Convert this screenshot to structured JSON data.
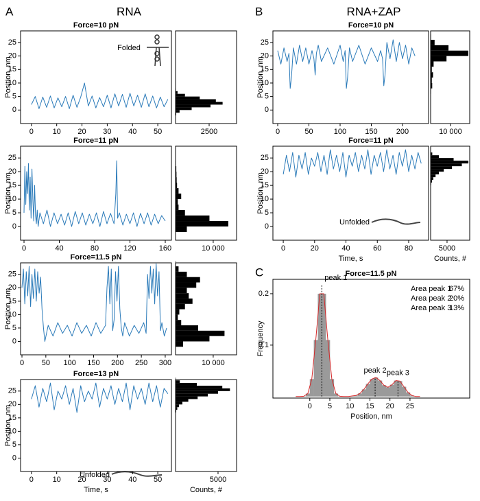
{
  "panels": [
    {
      "letter": "A",
      "title": "RNA"
    },
    {
      "letter": "B",
      "title": "RNA+ZAP"
    },
    {
      "letter": "C"
    }
  ],
  "chart_data": [
    {
      "type": "line",
      "title": "Force=10 pN",
      "ylabel": "Position, nm",
      "color": "#2a7ab9",
      "annotation": "Folded",
      "xlim": [
        -4.3,
        55.4
      ],
      "xticks": [
        0,
        10,
        20,
        30,
        40,
        50
      ],
      "ylim": [
        -5,
        29.3
      ],
      "yticks": [
        0,
        5,
        10,
        15,
        20,
        25
      ],
      "x": [
        0,
        1.5,
        3,
        4.5,
        6,
        7.5,
        9,
        10.5,
        12,
        13.5,
        15,
        16.5,
        18,
        19.5,
        21,
        22.5,
        24,
        25.5,
        27,
        28.5,
        30,
        31.5,
        33,
        34.5,
        36,
        37.5,
        39,
        40.5,
        42,
        43.5,
        45,
        46.5,
        48,
        49.5,
        51,
        52.5,
        54
      ],
      "values": [
        2,
        5,
        0.5,
        4.8,
        1,
        5.2,
        0.8,
        4.5,
        1.2,
        5,
        0.5,
        5.5,
        1,
        4.8,
        10,
        1.5,
        5.2,
        0.8,
        4.6,
        1.2,
        5.5,
        0.8,
        6,
        1.5,
        5.8,
        1,
        6.2,
        1.5,
        5.5,
        1,
        6,
        1.2,
        5.2,
        0.8,
        4.8,
        1.2,
        4
      ],
      "histogram": {
        "type": "histogram",
        "color": "#000000",
        "xlim": [
          0,
          4540
        ],
        "xticks": [
          2500
        ],
        "bins": [
          -2,
          -1,
          0,
          1,
          2,
          3,
          4,
          5,
          6,
          7,
          8
        ],
        "counts": [
          50,
          300,
          1200,
          2600,
          3500,
          3000,
          1800,
          700,
          150,
          30
        ]
      }
    },
    {
      "type": "line",
      "title": "Force=11 pN",
      "ylabel": "Position, nm",
      "color": "#2a7ab9",
      "xlim": [
        -3.9,
        167
      ],
      "xticks": [
        0,
        40,
        80,
        120,
        160
      ],
      "ylim": [
        -5,
        29.3
      ],
      "yticks": [
        0,
        5,
        10,
        15,
        20,
        25
      ],
      "x": [
        0,
        1,
        2,
        3,
        4,
        5,
        6,
        7,
        8,
        9,
        10,
        11,
        12,
        13,
        14,
        15,
        16,
        18,
        22,
        26,
        30,
        34,
        38,
        42,
        46,
        50,
        54,
        58,
        62,
        66,
        70,
        74,
        78,
        82,
        86,
        90,
        94,
        98,
        102,
        104,
        105,
        106,
        108,
        112,
        116,
        120,
        124,
        128,
        132,
        136,
        140,
        144,
        148,
        152,
        156,
        160
      ],
      "values": [
        5,
        22,
        8,
        20,
        12,
        23,
        6,
        18,
        3,
        21,
        10,
        2,
        15,
        4,
        1,
        6,
        0,
        5,
        1,
        6,
        0,
        5,
        1,
        4.5,
        0.5,
        5,
        0,
        5.5,
        1,
        5,
        0.5,
        4.5,
        1,
        5,
        0,
        5.5,
        1,
        4.8,
        1,
        12,
        24,
        3,
        5,
        0.5,
        4.5,
        1,
        5,
        0,
        4.8,
        1,
        5,
        0.5,
        4.5,
        1,
        4,
        2
      ],
      "histogram": {
        "type": "histogram",
        "color": "#000000",
        "xlim": [
          0,
          16200
        ],
        "xticks": [
          {
            "value": 10000,
            "label": "10 000"
          }
        ],
        "bins": [
          -2,
          0,
          2,
          4,
          6,
          8,
          10,
          12,
          14,
          16,
          18,
          20,
          22,
          24,
          26
        ],
        "counts": [
          3000,
          14000,
          9000,
          2500,
          800,
          600,
          1500,
          800,
          400,
          300,
          250,
          200,
          100,
          50
        ]
      }
    },
    {
      "type": "line",
      "title": "Force=11.5 pN",
      "ylabel": "Position, nm",
      "color": "#2a7ab9",
      "xlim": [
        -2.9,
        313
      ],
      "xticks": [
        0,
        50,
        100,
        150,
        200,
        250,
        300
      ],
      "ylim": [
        -5,
        29.3
      ],
      "yticks": [
        0,
        5,
        10,
        15,
        20,
        25
      ],
      "x": [
        0,
        3,
        6,
        9,
        12,
        15,
        18,
        21,
        24,
        27,
        30,
        33,
        36,
        39,
        42,
        45,
        48,
        55,
        65,
        75,
        85,
        95,
        105,
        115,
        125,
        135,
        145,
        155,
        165,
        175,
        178,
        181,
        184,
        187,
        190,
        193,
        196,
        199,
        202,
        205,
        208,
        211,
        215,
        225,
        235,
        245,
        255,
        260,
        263,
        266,
        269,
        272,
        275,
        278,
        281,
        284,
        287,
        290,
        293,
        298,
        303
      ],
      "values": [
        20,
        27,
        14,
        26,
        17,
        28,
        13,
        25,
        16,
        27,
        15,
        26,
        18,
        24,
        12,
        5,
        0,
        6,
        2,
        7,
        3,
        6,
        2,
        7,
        3,
        6,
        2,
        7,
        3,
        6,
        20,
        28,
        14,
        27,
        4,
        8,
        26,
        15,
        28,
        12,
        5,
        2,
        7,
        2,
        6,
        3,
        7,
        3,
        25,
        16,
        28,
        18,
        27,
        14,
        29,
        17,
        26,
        4,
        7,
        2,
        5
      ],
      "histogram": {
        "type": "histogram",
        "color": "#000000",
        "xlim": [
          0,
          16200
        ],
        "xticks": [
          {
            "value": 10000,
            "label": "10 000"
          }
        ],
        "bins": [
          -2,
          0,
          2,
          4,
          6,
          8,
          10,
          12,
          14,
          16,
          18,
          20,
          22,
          24,
          26,
          28,
          30
        ],
        "counts": [
          2000,
          9000,
          13000,
          6000,
          1500,
          600,
          1000,
          2500,
          4500,
          3500,
          3000,
          5500,
          6500,
          3000,
          800,
          100
        ]
      }
    },
    {
      "type": "line",
      "title": "Force=13 pN",
      "ylabel": "Position, nm",
      "xlabel": "Time, s",
      "color": "#2a7ab9",
      "annotation": "Unfolded",
      "xlim": [
        -4.3,
        55.4
      ],
      "xticks": [
        0,
        10,
        20,
        30,
        40,
        50
      ],
      "ylim": [
        -5,
        29.3
      ],
      "yticks": [
        0,
        5,
        10,
        15,
        20,
        25
      ],
      "x": [
        0,
        1.5,
        3,
        4.5,
        6,
        7.5,
        9,
        10.5,
        12,
        13.5,
        15,
        16.5,
        18,
        19.5,
        21,
        22.5,
        24,
        25.5,
        27,
        28.5,
        30,
        31.5,
        33,
        34.5,
        36,
        37.5,
        39,
        40.5,
        42,
        43.5,
        45,
        46.5,
        48,
        49.5,
        51,
        52.5,
        54
      ],
      "values": [
        22,
        27,
        19,
        26,
        21,
        28,
        18,
        25,
        22,
        27,
        20,
        26,
        17,
        27,
        21,
        25,
        22,
        28,
        19,
        26,
        22,
        27,
        20,
        26,
        21,
        28,
        18,
        27,
        22,
        26,
        20,
        28,
        21,
        27,
        19,
        26,
        24
      ],
      "histogram": {
        "type": "histogram",
        "color": "#000000",
        "xlabel": "Counts, #",
        "xlim": [
          0,
          7180
        ],
        "xticks": [
          5000
        ],
        "bins": [
          16,
          17,
          18,
          19,
          20,
          21,
          22,
          23,
          24,
          25,
          26,
          27,
          28,
          29,
          30
        ],
        "counts": [
          20,
          80,
          200,
          400,
          800,
          1500,
          2600,
          3800,
          5000,
          6400,
          5500,
          2500,
          500,
          50
        ]
      }
    },
    {
      "type": "line",
      "title": "Force=10 pN",
      "ylabel": "Position, nm",
      "color": "#2a7ab9",
      "xlim": [
        -7.7,
        241.8
      ],
      "xticks": [
        0,
        50,
        100,
        150,
        200
      ],
      "ylim": [
        -5,
        29.3
      ],
      "yticks": [
        0,
        5,
        10,
        15,
        20,
        25
      ],
      "x": [
        0,
        5,
        10,
        15,
        18,
        20,
        22,
        25,
        30,
        35,
        40,
        45,
        50,
        55,
        58,
        60,
        62,
        65,
        70,
        80,
        90,
        100,
        105,
        108,
        110,
        112,
        115,
        120,
        130,
        140,
        150,
        160,
        165,
        168,
        170,
        172,
        175,
        180,
        185,
        190,
        195,
        200,
        205,
        210,
        215,
        220
      ],
      "values": [
        22,
        17,
        23,
        18,
        21,
        8,
        12,
        23,
        17,
        24,
        18,
        23,
        17,
        22,
        19,
        13,
        21,
        24,
        18,
        23,
        17,
        24,
        18,
        22,
        8,
        12,
        23,
        18,
        24,
        17,
        23,
        18,
        22,
        19,
        9,
        13,
        25,
        19,
        26,
        18,
        25,
        19,
        24,
        17,
        23,
        20
      ],
      "histogram": {
        "type": "histogram",
        "color": "#000000",
        "xlim": [
          0,
          19700
        ],
        "xticks": [
          {
            "value": 10000,
            "label": "10 000"
          }
        ],
        "bins": [
          6,
          8,
          10,
          12,
          14,
          16,
          18,
          20,
          22,
          24,
          26,
          28
        ],
        "counts": [
          200,
          800,
          600,
          1200,
          600,
          1500,
          8000,
          19000,
          9000,
          2000,
          200
        ]
      }
    },
    {
      "type": "line",
      "title": "Force=11 pN",
      "ylabel": "Position, nm",
      "xlabel": "Time, s",
      "color": "#2a7ab9",
      "annotation": "Unfolded",
      "xlim": [
        -6.6,
        92.7
      ],
      "xticks": [
        0,
        20,
        40,
        60,
        80
      ],
      "ylim": [
        -5,
        29.3
      ],
      "yticks": [
        0,
        5,
        10,
        15,
        20,
        25
      ],
      "x": [
        0,
        2,
        4,
        6,
        8,
        10,
        12,
        14,
        16,
        18,
        20,
        22,
        24,
        26,
        28,
        30,
        32,
        34,
        36,
        38,
        40,
        42,
        44,
        46,
        48,
        50,
        52,
        54,
        56,
        58,
        60,
        62,
        64,
        66,
        68,
        70,
        72,
        74,
        76,
        78,
        80,
        82,
        84,
        86,
        88
      ],
      "values": [
        19,
        26,
        20,
        27,
        18,
        26,
        21,
        27,
        19,
        25,
        22,
        27,
        20,
        26,
        19,
        28,
        21,
        26,
        20,
        27,
        18,
        26,
        22,
        27,
        20,
        26,
        21,
        28,
        19,
        26,
        22,
        27,
        20,
        28,
        21,
        26,
        19,
        27,
        22,
        28,
        20,
        26,
        21,
        27,
        23
      ],
      "histogram": {
        "type": "histogram",
        "color": "#000000",
        "xlabel": "Counts, #",
        "xlim": [
          0,
          11900
        ],
        "xticks": [
          5000
        ],
        "bins": [
          14,
          15,
          16,
          17,
          18,
          19,
          20,
          21,
          22,
          23,
          24,
          25,
          26,
          27,
          28
        ],
        "counts": [
          50,
          150,
          400,
          800,
          1500,
          2500,
          4000,
          6500,
          9500,
          11500,
          7000,
          2500,
          500,
          50
        ]
      }
    },
    {
      "type": "histogram",
      "title": "Force=11.5 pN",
      "xlabel": "Position, nm",
      "ylabel": "Frequency",
      "color": "#9a9a9a",
      "fit_color": "#d62728",
      "xlim": [
        -9.2,
        39.9
      ],
      "xticks": [
        0,
        5,
        10,
        15,
        20,
        25
      ],
      "ylim": [
        -0.003,
        0.228
      ],
      "yticks": [
        0.1,
        0.2
      ],
      "bins": [
        -4,
        -3,
        -2,
        -1,
        0,
        1,
        2,
        3,
        4,
        5,
        6,
        7,
        8,
        9,
        10,
        11,
        12,
        13,
        14,
        15,
        16,
        17,
        18,
        19,
        20,
        21,
        22,
        23,
        24,
        25,
        26,
        27,
        28
      ],
      "counts": [
        0,
        0,
        0.0005,
        0.0058,
        0.034,
        0.11,
        0.2,
        0.2,
        0.11,
        0.034,
        0.0058,
        0.0005,
        0,
        0,
        0.001,
        0.002,
        0.006,
        0.0139,
        0.0247,
        0.034,
        0.037,
        0.031,
        0.022,
        0.018,
        0.023,
        0.031,
        0.03,
        0.019,
        0.008,
        0.002,
        0,
        0
      ],
      "fit": {
        "x": [
          -3.5,
          -2.5,
          -1.5,
          -0.5,
          0.5,
          1.5,
          2.5,
          3.5,
          4.5,
          5.5,
          6.5,
          7.5,
          8.5,
          9.5,
          10.5,
          11.5,
          12.5,
          13.5,
          14.5,
          15.5,
          16.5,
          17.5,
          18.5,
          19.5,
          20.5,
          21.5,
          22.5,
          23.5,
          24.5,
          25.5,
          26.5,
          27.5
        ],
        "values": [
          0,
          0,
          0.0005,
          0.0058,
          0.034,
          0.11,
          0.2,
          0.2,
          0.11,
          0.034,
          0.0058,
          0.0005,
          0,
          0,
          0.001,
          0.002,
          0.006,
          0.0139,
          0.0247,
          0.034,
          0.037,
          0.031,
          0.022,
          0.018,
          0.023,
          0.031,
          0.03,
          0.019,
          0.008,
          0.002,
          0,
          0
        ]
      },
      "peaks": [
        {
          "label": "peak 1",
          "x": 3,
          "y": 0.217
        },
        {
          "label": "peak 2",
          "x": 16.3,
          "y": 0.037
        },
        {
          "label": "peak 3",
          "x": 22,
          "y": 0.032
        }
      ],
      "areas": {
        "labels": [
          "Area peak 1",
          "Area peak 2",
          "Area peak 3"
        ],
        "values": [
          67,
          20,
          13
        ],
        "value_labels": [
          "67%",
          "20%",
          "13%"
        ]
      }
    }
  ]
}
